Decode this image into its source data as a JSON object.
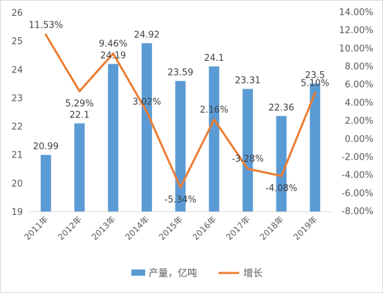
{
  "chart_data": {
    "type": "bar+line",
    "categories": [
      "2011年",
      "2012年",
      "2013年",
      "2014年",
      "2015年",
      "2016年",
      "2017年",
      "2018年",
      "2019年"
    ],
    "series": [
      {
        "name": "产量，亿吨",
        "type": "bar",
        "axis": "left",
        "values": [
          20.99,
          22.1,
          24.19,
          24.92,
          23.59,
          24.1,
          23.31,
          22.36,
          23.5
        ],
        "labels": [
          "20.99",
          "22.1",
          "24.19",
          "24.92",
          "23.59",
          "24.1",
          "23.31",
          "22.36",
          "23.5"
        ],
        "color": "#5B9BD5"
      },
      {
        "name": "增长",
        "type": "line",
        "axis": "right",
        "values": [
          11.53,
          5.29,
          9.46,
          3.02,
          -5.34,
          2.16,
          -3.28,
          -4.08,
          5.1
        ],
        "labels": [
          "11.53%",
          "5.29%",
          "9.46%",
          "3.02%",
          "-5.34%",
          "2.16%",
          "-3.28%",
          "-4.08%",
          "5.10%"
        ],
        "color": "#ED7D31"
      }
    ],
    "y_left": {
      "range": [
        19,
        26
      ],
      "ticks": [
        "19",
        "20",
        "21",
        "22",
        "23",
        "24",
        "25",
        "26"
      ]
    },
    "y_right": {
      "range": [
        -8,
        14
      ],
      "ticks": [
        "-8.00%",
        "-6.00%",
        "-4.00%",
        "-2.00%",
        "0.00%",
        "2.00%",
        "4.00%",
        "6.00%",
        "8.00%",
        "10.00%",
        "12.00%",
        "14.00%"
      ]
    },
    "grid": false,
    "legend": "bottom"
  }
}
